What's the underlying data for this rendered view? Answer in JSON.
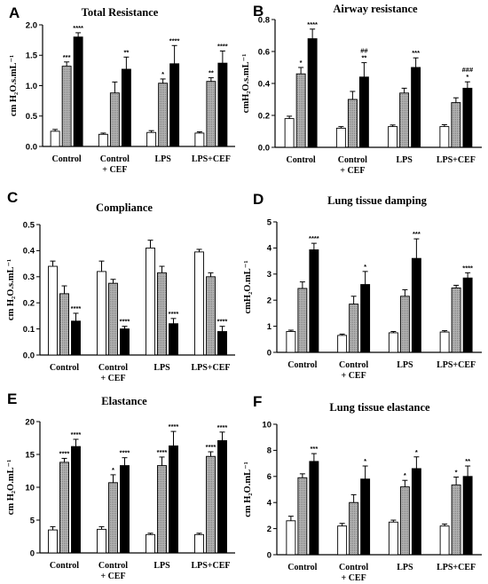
{
  "colors": {
    "white_bar": "#ffffff",
    "gray_bar": "#a9a9a9",
    "black_bar": "#000000",
    "axis": "#000000"
  },
  "chart_data": [
    {
      "type": "bar",
      "panel_label": "A",
      "title": "Total  Resistance",
      "ylabel": "cm H₂O.s.mL⁻¹",
      "ylim": [
        0,
        2.0
      ],
      "yticks": [
        0,
        0.5,
        1.0,
        1.5,
        2.0
      ],
      "ytick_labels": [
        "0.0",
        "0.5",
        "1.0",
        "1.5",
        "2.0"
      ],
      "categories": [
        "Control",
        "Control\n+ CEF",
        "LPS",
        "LPS+CEF"
      ],
      "series": [
        {
          "values": [
            0.25,
            0.2,
            0.23,
            0.22
          ],
          "errors": [
            0.03,
            0.02,
            0.03,
            0.02
          ],
          "sig": [
            "",
            "",
            "",
            ""
          ]
        },
        {
          "values": [
            1.32,
            0.88,
            1.04,
            1.07
          ],
          "errors": [
            0.07,
            0.18,
            0.07,
            0.06
          ],
          "sig": [
            "***",
            "",
            "*",
            "**"
          ]
        },
        {
          "values": [
            1.8,
            1.27,
            1.36,
            1.37
          ],
          "errors": [
            0.07,
            0.2,
            0.3,
            0.2
          ],
          "sig": [
            "****",
            "**",
            "****",
            "****"
          ]
        }
      ]
    },
    {
      "type": "bar",
      "panel_label": "B",
      "title": "Airway resistance",
      "ylabel": "cmH₂O.s.mL⁻¹",
      "ylim": [
        0,
        0.8
      ],
      "yticks": [
        0,
        0.2,
        0.4,
        0.6,
        0.8
      ],
      "ytick_labels": [
        "0.0",
        "0.2",
        "0.4",
        "0.6",
        "0.8"
      ],
      "categories": [
        "Control",
        "Control\n+ CEF",
        "LPS",
        "LPS+CEF"
      ],
      "series": [
        {
          "values": [
            0.18,
            0.12,
            0.13,
            0.13
          ],
          "errors": [
            0.015,
            0.01,
            0.01,
            0.012
          ],
          "sig": [
            "",
            "",
            "",
            ""
          ]
        },
        {
          "values": [
            0.46,
            0.3,
            0.34,
            0.28
          ],
          "errors": [
            0.04,
            0.05,
            0.03,
            0.03
          ],
          "sig": [
            "*",
            "",
            "",
            ""
          ]
        },
        {
          "values": [
            0.68,
            0.44,
            0.5,
            0.37
          ],
          "errors": [
            0.06,
            0.09,
            0.06,
            0.04
          ],
          "sig": [
            "****",
            "##\n**",
            "***",
            "###\n*"
          ]
        }
      ]
    },
    {
      "type": "bar",
      "panel_label": "C",
      "title": "Compliance",
      "ylabel": "cm H₂O.s.mL⁻¹",
      "ylim": [
        0,
        0.5
      ],
      "yticks": [
        0,
        0.1,
        0.2,
        0.3,
        0.4,
        0.5
      ],
      "ytick_labels": [
        "0.0",
        "0.1",
        "0.2",
        "0.3",
        "0.4",
        "0.5"
      ],
      "categories": [
        "Control",
        "Control\n+ CEF",
        "LPS",
        "LPS+CEF"
      ],
      "series": [
        {
          "values": [
            0.34,
            0.32,
            0.41,
            0.395
          ],
          "errors": [
            0.02,
            0.04,
            0.03,
            0.01
          ],
          "sig": [
            "",
            "",
            "",
            ""
          ]
        },
        {
          "values": [
            0.235,
            0.275,
            0.315,
            0.3
          ],
          "errors": [
            0.03,
            0.015,
            0.025,
            0.015
          ],
          "sig": [
            "",
            "",
            "",
            ""
          ]
        },
        {
          "values": [
            0.13,
            0.1,
            0.12,
            0.09
          ],
          "errors": [
            0.03,
            0.01,
            0.02,
            0.02
          ],
          "sig": [
            "****",
            "****",
            "****",
            "****"
          ]
        }
      ]
    },
    {
      "type": "bar",
      "panel_label": "D",
      "title": "Lung tissue damping",
      "ylabel": "cmH₂O.mL⁻¹",
      "ylim": [
        0,
        5
      ],
      "yticks": [
        0,
        1,
        2,
        3,
        4,
        5
      ],
      "ytick_labels": [
        "0",
        "1",
        "2",
        "3",
        "4",
        "5"
      ],
      "categories": [
        "Control",
        "Control\n+ CEF",
        "LPS",
        "LPS+CEF"
      ],
      "series": [
        {
          "values": [
            0.8,
            0.65,
            0.75,
            0.78
          ],
          "errors": [
            0.05,
            0.05,
            0.05,
            0.05
          ],
          "sig": [
            "",
            "",
            "",
            ""
          ]
        },
        {
          "values": [
            2.45,
            1.85,
            2.15,
            2.47
          ],
          "errors": [
            0.25,
            0.3,
            0.25,
            0.1
          ],
          "sig": [
            "",
            "",
            "",
            ""
          ]
        },
        {
          "values": [
            3.93,
            2.6,
            3.6,
            2.85
          ],
          "errors": [
            0.25,
            0.5,
            0.75,
            0.2
          ],
          "sig": [
            "****",
            "*",
            "***",
            "****"
          ]
        }
      ]
    },
    {
      "type": "bar",
      "panel_label": "E",
      "title": "Elastance",
      "ylabel": "cm H₂O.mL⁻¹",
      "ylim": [
        0,
        20
      ],
      "yticks": [
        0,
        5,
        10,
        15,
        20
      ],
      "ytick_labels": [
        "0",
        "5",
        "10",
        "15",
        "20"
      ],
      "categories": [
        "Control",
        "Control\n+ CEF",
        "LPS",
        "LPS+CEF"
      ],
      "series": [
        {
          "values": [
            3.5,
            3.6,
            2.8,
            2.8
          ],
          "errors": [
            0.5,
            0.4,
            0.2,
            0.2
          ],
          "sig": [
            "",
            "",
            "",
            ""
          ]
        },
        {
          "values": [
            13.8,
            10.7,
            13.3,
            14.7
          ],
          "errors": [
            0.6,
            1.2,
            1.3,
            0.7
          ],
          "sig": [
            "****",
            "*",
            "****",
            "****"
          ]
        },
        {
          "values": [
            16.2,
            13.3,
            16.3,
            17.1
          ],
          "errors": [
            1.1,
            1.2,
            2.2,
            1.3
          ],
          "sig": [
            "****",
            "****",
            "****",
            "****"
          ]
        }
      ]
    },
    {
      "type": "bar",
      "panel_label": "F",
      "title": "Lung tissue elastance",
      "ylabel": "cm H₂O.mL⁻¹",
      "ylim": [
        0,
        10
      ],
      "yticks": [
        0,
        2,
        4,
        6,
        8,
        10
      ],
      "ytick_labels": [
        "0",
        "2",
        "4",
        "6",
        "8",
        "10"
      ],
      "categories": [
        "Control",
        "Control\n+ CEF",
        "LPS",
        "LPS+CEF"
      ],
      "series": [
        {
          "values": [
            2.6,
            2.2,
            2.5,
            2.2
          ],
          "errors": [
            0.35,
            0.2,
            0.15,
            0.15
          ],
          "sig": [
            "",
            "",
            "",
            ""
          ]
        },
        {
          "values": [
            5.9,
            4.0,
            5.2,
            5.35
          ],
          "errors": [
            0.3,
            0.6,
            0.5,
            0.6
          ],
          "sig": [
            "",
            "",
            "*",
            "*"
          ]
        },
        {
          "values": [
            7.15,
            5.8,
            6.6,
            6.0
          ],
          "errors": [
            0.6,
            1.0,
            0.9,
            0.8
          ],
          "sig": [
            "***",
            "*",
            "*",
            "**"
          ]
        }
      ]
    }
  ]
}
